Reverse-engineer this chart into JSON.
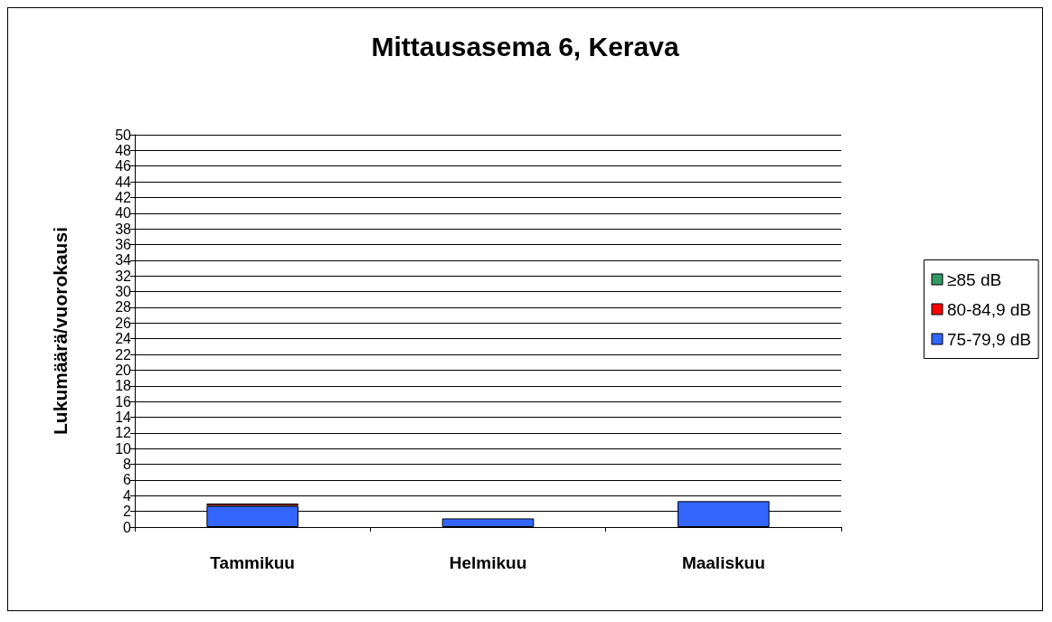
{
  "chart_data": {
    "type": "bar",
    "title": "Mittausasema 6, Kerava",
    "ylabel": "Lukumäärä/vuorokausi",
    "categories": [
      "Tammikuu",
      "Helmikuu",
      "Maaliskuu"
    ],
    "stacked": true,
    "series": [
      {
        "name": "75-79,9 dB",
        "color": "#3366ff",
        "values": [
          2.7,
          1.1,
          3.3
        ]
      },
      {
        "name": "80-84,9 dB",
        "color": "#ff0000",
        "values": [
          0.3,
          null,
          null
        ]
      },
      {
        "name": "≥85 dB",
        "color": "#339966",
        "values": [
          null,
          null,
          null
        ]
      }
    ],
    "ylim": [
      0,
      50
    ],
    "yticks": [
      0,
      2,
      4,
      6,
      8,
      10,
      12,
      14,
      16,
      18,
      20,
      22,
      24,
      26,
      28,
      30,
      32,
      34,
      36,
      38,
      40,
      42,
      44,
      46,
      48,
      50
    ],
    "grid": "y",
    "legend": "right"
  }
}
